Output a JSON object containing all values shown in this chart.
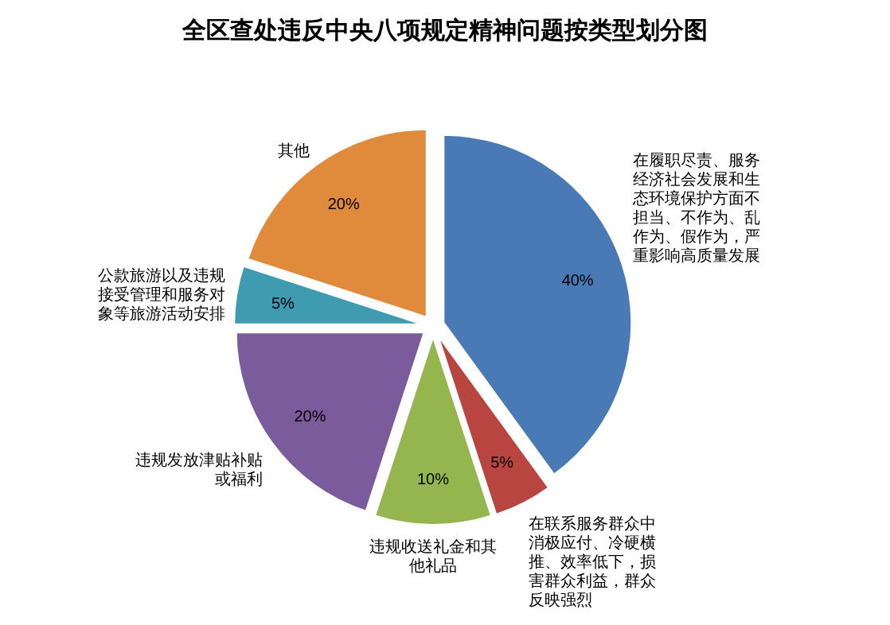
{
  "chart_data": {
    "type": "pie",
    "title": "全区查处违反中央八项规定精神问题按类型划分图",
    "categories": [
      "在履职尽责、服务经济社会发展和生态环境保护方面不担当、不作为、乱作为、假作为，严重影响高质量发展",
      "在联系服务群众中消极应付、冷硬横推、效率低下，损害群众利益，群众反映强烈",
      "违规收送礼金和其他礼品",
      "违规发放津贴补贴或福利",
      "公款旅游以及违规接受管理和服务对象等旅游活动安排",
      "其他"
    ],
    "values": [
      40,
      5,
      10,
      20,
      5,
      20
    ],
    "colors": [
      "#4a7ab5",
      "#b8453f",
      "#95b54f",
      "#7a5b9c",
      "#3f9bb0",
      "#e08a3c"
    ],
    "value_labels": [
      "40%",
      "5%",
      "10%",
      "20%",
      "5%",
      "20%"
    ],
    "legend": false
  }
}
